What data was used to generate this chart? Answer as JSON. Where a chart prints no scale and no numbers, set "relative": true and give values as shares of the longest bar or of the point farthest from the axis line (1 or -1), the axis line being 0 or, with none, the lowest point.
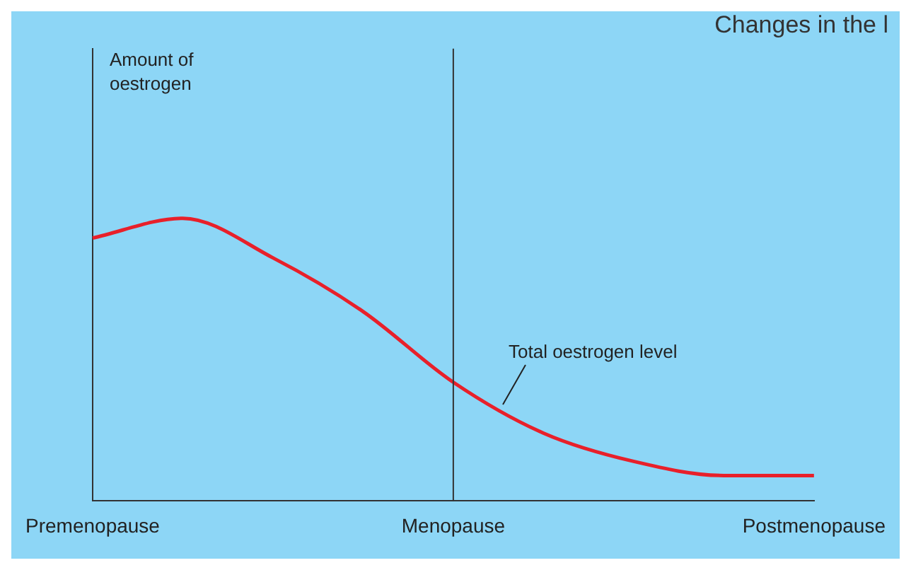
{
  "chart_data": {
    "type": "line",
    "title": "Changes in the l",
    "annotations": [
      "Amount of\noestrogen"
    ],
    "categories": [
      "Premenopause",
      null,
      null,
      null,
      "Menopause",
      null,
      null,
      null,
      "Postmenopause"
    ],
    "series": [
      {
        "name": "Total oestrogen level",
        "color": "#e8202a",
        "values": [
          0.93,
          1.0,
          0.86,
          0.67,
          0.42,
          0.24,
          0.14,
          0.09,
          0.09
        ]
      }
    ],
    "relative": true,
    "grid": false,
    "legend": false,
    "ref_lines": [
      {
        "axis": "x",
        "value": "Menopause",
        "color": "#333333"
      }
    ]
  }
}
